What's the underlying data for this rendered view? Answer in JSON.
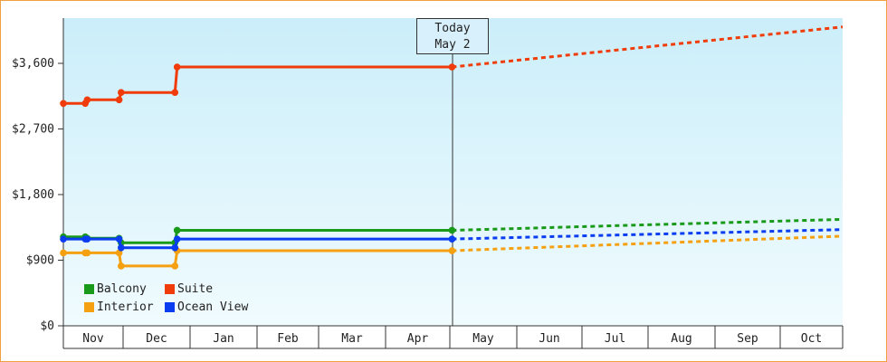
{
  "chart_data": {
    "type": "line",
    "title": "",
    "xlabel": "",
    "ylabel": "",
    "y_ticks": [
      "$0",
      "$900",
      "$1,800",
      "$2,700",
      "$3,600"
    ],
    "y_tick_values": [
      0,
      900,
      1800,
      2700,
      3600
    ],
    "ylim": [
      0,
      4200
    ],
    "x_months": [
      "Nov",
      "Dec",
      "Jan",
      "Feb",
      "Mar",
      "Apr",
      "May",
      "Jun",
      "Jul",
      "Aug",
      "Sep",
      "Oct"
    ],
    "grid": "none",
    "legend_position": "bottom-left",
    "today_marker": {
      "line1": "Today",
      "line2": "May 2"
    },
    "series": [
      {
        "name": "Balcony",
        "color": "#1a9a1a",
        "points": [
          [
            "Oct 31",
            1220
          ],
          [
            "Nov 12",
            1220
          ],
          [
            "Nov 13",
            1200
          ],
          [
            "Nov 29",
            1200
          ],
          [
            "Nov 30",
            1140
          ],
          [
            "Dec 25",
            1140
          ],
          [
            "Dec 26",
            1310
          ],
          [
            "May 2",
            1310
          ]
        ],
        "forecast": [
          [
            "May 2",
            1310
          ],
          [
            "Oct 31",
            1460
          ]
        ]
      },
      {
        "name": "Suite",
        "color": "#f03c0a",
        "points": [
          [
            "Oct 31",
            3050
          ],
          [
            "Nov 12",
            3050
          ],
          [
            "Nov 13",
            3100
          ],
          [
            "Nov 29",
            3100
          ],
          [
            "Nov 30",
            3200
          ],
          [
            "Dec 25",
            3200
          ],
          [
            "Dec 26",
            3550
          ],
          [
            "May 2",
            3550
          ]
        ],
        "forecast": [
          [
            "May 2",
            3550
          ],
          [
            "Oct 31",
            4100
          ]
        ]
      },
      {
        "name": "Interior",
        "color": "#f5a010",
        "points": [
          [
            "Oct 31",
            1000
          ],
          [
            "Nov 12",
            1000
          ],
          [
            "Nov 13",
            1000
          ],
          [
            "Nov 29",
            1000
          ],
          [
            "Nov 30",
            820
          ],
          [
            "Dec 25",
            820
          ],
          [
            "Dec 26",
            1030
          ],
          [
            "May 2",
            1030
          ]
        ],
        "forecast": [
          [
            "May 2",
            1030
          ],
          [
            "Oct 31",
            1230
          ]
        ]
      },
      {
        "name": "Ocean View",
        "color": "#0a3cf0",
        "points": [
          [
            "Oct 31",
            1190
          ],
          [
            "Nov 12",
            1190
          ],
          [
            "Nov 13",
            1190
          ],
          [
            "Nov 29",
            1190
          ],
          [
            "Nov 30",
            1070
          ],
          [
            "Dec 25",
            1070
          ],
          [
            "Dec 26",
            1190
          ],
          [
            "May 2",
            1190
          ]
        ],
        "forecast": [
          [
            "May 2",
            1190
          ],
          [
            "Oct 31",
            1320
          ]
        ]
      }
    ]
  }
}
